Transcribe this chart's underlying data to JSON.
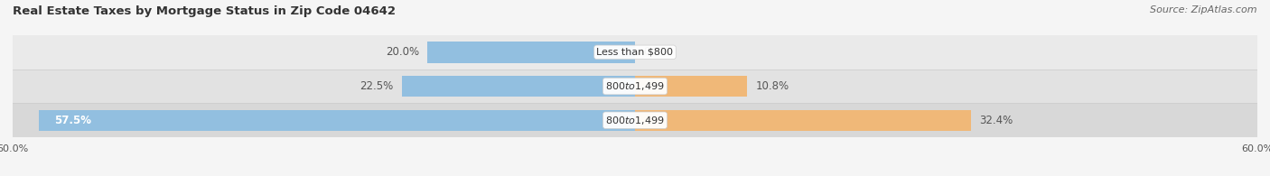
{
  "title": "Real Estate Taxes by Mortgage Status in Zip Code 04642",
  "source": "Source: ZipAtlas.com",
  "rows": [
    {
      "label": "Less than $800",
      "without_mortgage": 20.0,
      "with_mortgage": 0.0
    },
    {
      "label": "$800 to $1,499",
      "without_mortgage": 22.5,
      "with_mortgage": 10.8
    },
    {
      "label": "$800 to $1,499",
      "without_mortgage": 57.5,
      "with_mortgage": 32.4
    }
  ],
  "x_max": 60.0,
  "color_without": "#92BFE0",
  "color_with": "#F0B878",
  "bar_height": 0.62,
  "row_bg_even": "#EAEAEA",
  "row_bg_odd": "#E2E2E2",
  "row_bg_last": "#D8D8D8",
  "title_fontsize": 9.5,
  "source_fontsize": 8,
  "pct_fontsize": 8.5,
  "label_fontsize": 8.0,
  "tick_fontsize": 8,
  "legend_fontsize": 8.5,
  "background_color": "#F5F5F5",
  "row_border_color": "#CCCCCC",
  "title_color": "#333333",
  "source_color": "#666666",
  "pct_color_outside": "#555555",
  "pct_color_inside": "#FFFFFF"
}
